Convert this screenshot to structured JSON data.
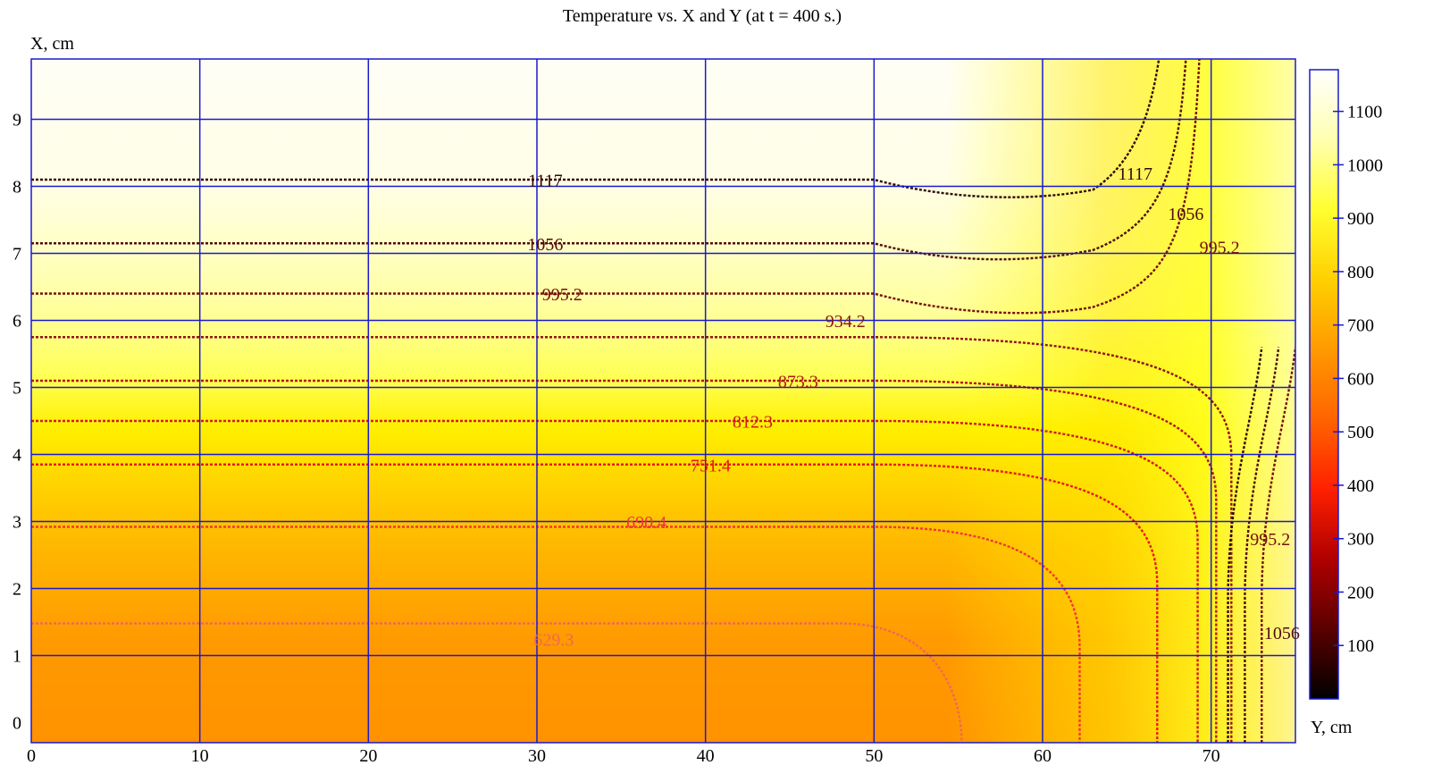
{
  "chart_data": {
    "type": "heatmap",
    "title": "Temperature vs. X and Y (at t = 400 s.)",
    "xlabel": "Y, cm",
    "ylabel": "X, cm",
    "x_ticks": [
      0,
      10,
      20,
      30,
      40,
      50,
      60,
      70
    ],
    "y_ticks": [
      0,
      1,
      2,
      3,
      4,
      5,
      6,
      7,
      8,
      9
    ],
    "xlim": [
      0,
      75
    ],
    "ylim": [
      -0.3,
      9.9
    ],
    "grid": true,
    "grid_color": "#1a1acc",
    "colorbar": {
      "ticks": [
        100,
        200,
        300,
        400,
        500,
        600,
        700,
        800,
        900,
        1000,
        1100
      ],
      "range": [
        0,
        1178
      ],
      "colors": [
        "#000000",
        "#5a0000",
        "#b00000",
        "#ff2000",
        "#ff6400",
        "#ff9a00",
        "#ffd000",
        "#ffff30",
        "#ffffb0",
        "#ffffff"
      ]
    },
    "contours": [
      {
        "level": "629.3",
        "value": 629.3,
        "color": "#f06a50"
      },
      {
        "level": "690.4",
        "value": 690.4,
        "color": "#f03838"
      },
      {
        "level": "751.4",
        "value": 751.4,
        "color": "#e81a1a"
      },
      {
        "level": "812.3",
        "value": 812.3,
        "color": "#d01c1c"
      },
      {
        "level": "873.3",
        "value": 873.3,
        "color": "#b01818"
      },
      {
        "level": "934.2",
        "value": 934.2,
        "color": "#901414"
      },
      {
        "level": "995.2",
        "value": 995.2,
        "color": "#741010"
      },
      {
        "level": "1056",
        "value": 1056,
        "color": "#500c0c"
      },
      {
        "level": "1117",
        "value": 1117,
        "color": "#300808"
      }
    ]
  }
}
